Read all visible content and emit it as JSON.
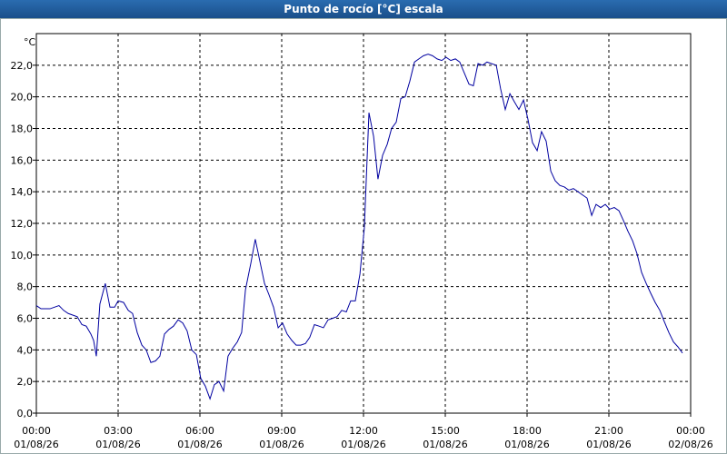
{
  "chart_data": {
    "type": "line",
    "title": "Punto de rocío [°C] escala",
    "y_unit": "°C",
    "xlim": [
      0,
      24
    ],
    "ylim": [
      0,
      24
    ],
    "grid": true,
    "xticks": [
      {
        "value": 0,
        "label": [
          "00:00",
          "01/08/26"
        ]
      },
      {
        "value": 3,
        "label": [
          "03:00",
          "01/08/26"
        ]
      },
      {
        "value": 6,
        "label": [
          "06:00",
          "01/08/26"
        ]
      },
      {
        "value": 9,
        "label": [
          "09:00",
          "01/08/26"
        ]
      },
      {
        "value": 12,
        "label": [
          "12:00",
          "01/08/26"
        ]
      },
      {
        "value": 15,
        "label": [
          "15:00",
          "01/08/26"
        ]
      },
      {
        "value": 18,
        "label": [
          "18:00",
          "01/08/26"
        ]
      },
      {
        "value": 21,
        "label": [
          "21:00",
          "01/08/26"
        ]
      },
      {
        "value": 24,
        "label": [
          "00:00",
          "02/08/26"
        ]
      }
    ],
    "yticks": [
      {
        "value": 0,
        "label": "0,0"
      },
      {
        "value": 2,
        "label": "2,0"
      },
      {
        "value": 4,
        "label": "4,0"
      },
      {
        "value": 6,
        "label": "6,0"
      },
      {
        "value": 8,
        "label": "8,0"
      },
      {
        "value": 10,
        "label": "10,0"
      },
      {
        "value": 12,
        "label": "12,0"
      },
      {
        "value": 14,
        "label": "14,0"
      },
      {
        "value": 16,
        "label": "16,0"
      },
      {
        "value": 18,
        "label": "18,0"
      },
      {
        "value": 20,
        "label": "20,0"
      },
      {
        "value": 22,
        "label": "22,0"
      }
    ],
    "x": [
      0,
      0.17,
      0.5,
      0.83,
      1,
      1.17,
      1.5,
      1.67,
      1.83,
      2,
      2.1,
      2.2,
      2.33,
      2.53,
      2.7,
      2.87,
      3,
      3.2,
      3.37,
      3.53,
      3.7,
      3.87,
      4.03,
      4.2,
      4.37,
      4.53,
      4.7,
      4.87,
      5.03,
      5.2,
      5.37,
      5.53,
      5.7,
      5.87,
      6.03,
      6.2,
      6.37,
      6.53,
      6.7,
      6.87,
      7.03,
      7.2,
      7.37,
      7.53,
      7.67,
      7.87,
      8.03,
      8.2,
      8.37,
      8.53,
      8.7,
      8.87,
      9.03,
      9.2,
      9.37,
      9.53,
      9.7,
      9.87,
      10.03,
      10.2,
      10.37,
      10.53,
      10.7,
      10.87,
      11.03,
      11.2,
      11.37,
      11.53,
      11.7,
      11.87,
      12.03,
      12.2,
      12.37,
      12.53,
      12.7,
      12.87,
      13.03,
      13.2,
      13.37,
      13.53,
      13.7,
      13.87,
      14.03,
      14.2,
      14.37,
      14.53,
      14.7,
      14.87,
      15.03,
      15.2,
      15.37,
      15.53,
      15.7,
      15.87,
      16.03,
      16.2,
      16.37,
      16.53,
      16.7,
      16.87,
      17.03,
      17.2,
      17.37,
      17.53,
      17.7,
      17.87,
      18.03,
      18.2,
      18.37,
      18.53,
      18.7,
      18.87,
      19.03,
      19.2,
      19.37,
      19.53,
      19.7,
      19.87,
      20.03,
      20.2,
      20.37,
      20.53,
      20.7,
      20.87,
      21.03,
      21.2,
      21.37,
      21.53,
      21.7,
      21.87,
      22.03,
      22.2,
      22.37,
      22.53,
      22.7,
      22.87,
      23.03,
      23.2,
      23.37,
      23.53,
      23.7
    ],
    "series": [
      {
        "color": "#0000a0",
        "values": [
          6.8,
          6.6,
          6.6,
          6.8,
          6.5,
          6.3,
          6.1,
          5.6,
          5.5,
          5.0,
          4.6,
          3.6,
          6.9,
          8.2,
          6.7,
          6.7,
          7.1,
          7.0,
          6.5,
          6.3,
          5.1,
          4.3,
          4.0,
          3.2,
          3.3,
          3.6,
          5.0,
          5.3,
          5.5,
          5.9,
          5.7,
          5.2,
          4.0,
          3.7,
          2.2,
          1.7,
          0.9,
          1.8,
          2.0,
          1.4,
          3.6,
          4.1,
          4.5,
          5.1,
          7.8,
          9.5,
          11.0,
          9.6,
          8.2,
          7.5,
          6.7,
          5.4,
          5.7,
          5.0,
          4.6,
          4.3,
          4.3,
          4.4,
          4.8,
          5.6,
          5.5,
          5.4,
          5.9,
          6.0,
          6.1,
          6.5,
          6.4,
          7.1,
          7.1,
          8.8,
          11.7,
          19.0,
          17.5,
          14.8,
          16.3,
          17.0,
          18.0,
          18.4,
          19.9,
          20.0,
          21.0,
          22.2,
          22.4,
          22.6,
          22.7,
          22.6,
          22.4,
          22.3,
          22.5,
          22.3,
          22.4,
          22.2,
          21.5,
          20.8,
          20.7,
          22.1,
          22.0,
          22.2,
          22.1,
          22.0,
          20.5,
          19.2,
          20.2,
          19.7,
          19.2,
          19.8,
          18.6,
          17.1,
          16.6,
          17.8,
          17.2,
          15.3,
          14.7,
          14.4,
          14.3,
          14.1,
          14.2,
          14.0,
          13.8,
          13.6,
          12.5,
          13.2,
          13.0,
          13.2,
          12.9,
          13.0,
          12.8,
          12.2,
          11.5,
          10.9,
          10.1,
          8.9,
          8.2,
          7.6,
          7.0,
          6.5,
          5.8,
          5.1,
          4.5,
          4.2,
          3.8
        ]
      }
    ]
  }
}
